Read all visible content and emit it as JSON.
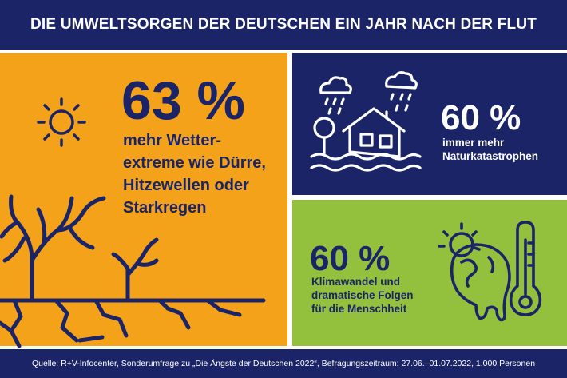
{
  "header": {
    "title": "DIE UMWELTSORGEN DER DEUTSCHEN EIN JAHR NACH DER FLUT"
  },
  "stats": [
    {
      "value": "63 %",
      "lines": [
        "mehr Wetter-",
        "extreme wie Dürre,",
        "Hitzewellen oder",
        "Starkregen"
      ],
      "icon": "sun-dry-tree-icon",
      "color": "#f5a21b"
    },
    {
      "value": "60 %",
      "lines": [
        "immer mehr",
        "Naturkatastrophen"
      ],
      "icon": "flooded-house-icon",
      "color": "#1b2466"
    },
    {
      "value": "60 %",
      "lines": [
        "Klimawandel und",
        "dramatische Folgen",
        "für die Menschheit"
      ],
      "icon": "melting-globe-thermometer-icon",
      "color": "#93c13d"
    }
  ],
  "footer": {
    "source": "Quelle: R+V-Infocenter, Sonderumfrage zu „Die Ängste der Deutschen 2022“, Befragungszeitraum: 27.06.–01.07.2022, 1.000 Personen"
  },
  "colors": {
    "navy": "#1b2466",
    "orange": "#f5a21b",
    "green": "#93c13d"
  }
}
